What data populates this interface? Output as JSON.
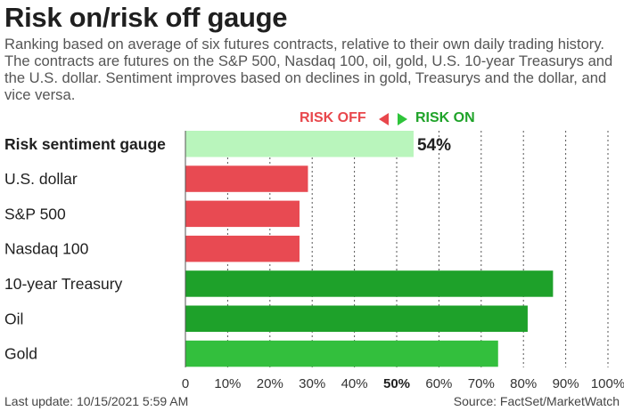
{
  "title": "Risk on/risk off gauge",
  "subtitle": "Ranking based on average of six futures contracts, relative to their own daily trading history. The contracts are futures on the S&P 500, Nasdaq 100, oil, gold, U.S. 10-year Treasurys and the U.S. dollar. Sentiment improves based on declines in gold, Treasurys and the dollar, and vice versa.",
  "legend": {
    "risk_off": "RISK OFF",
    "risk_on": "RISK ON"
  },
  "colors": {
    "gauge": "#b9f5bc",
    "risk_off_bar": "#e84a52",
    "risk_on_dark": "#1ea12a",
    "risk_on_light": "#33bf3d",
    "grid": "#555555"
  },
  "chart_data": {
    "type": "bar",
    "orientation": "horizontal",
    "categories": [
      "Risk sentiment gauge",
      "U.S. dollar",
      "S&P 500",
      "Nasdaq 100",
      "10-year Treasury",
      "Oil",
      "Gold"
    ],
    "values": [
      54,
      29,
      27,
      27,
      87,
      81,
      74
    ],
    "bar_colors": [
      "#b9f5bc",
      "#e84a52",
      "#e84a52",
      "#e84a52",
      "#1ea12a",
      "#1ea12a",
      "#33bf3d"
    ],
    "data_labels": [
      "54%",
      "",
      "",
      "",
      "",
      "",
      ""
    ],
    "x_ticks": [
      "0",
      "10%",
      "20%",
      "30%",
      "40%",
      "50%",
      "60%",
      "70%",
      "80%",
      "90%",
      "100%"
    ],
    "xlim": [
      0,
      100
    ],
    "grid": "vertical dashed at every 10%"
  },
  "footer": {
    "last_update": "Last update: 10/15/2021 5:59 AM",
    "source": "Source: FactSet/MarketWatch"
  }
}
